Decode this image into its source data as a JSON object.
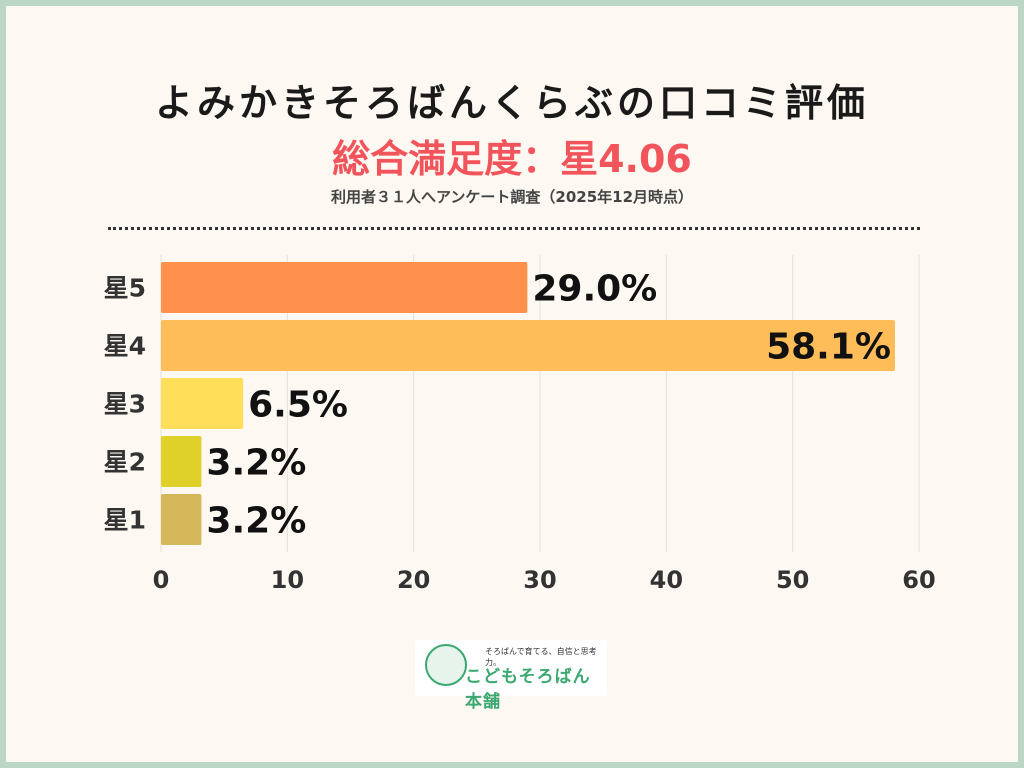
{
  "header": {
    "title": "よみかきそろばんくらぶの口コミ評価",
    "overall": "総合満足度：星4.06",
    "note": "利用者３１人へアンケート調査（2025年12月時点）"
  },
  "chart_data": {
    "type": "bar",
    "orientation": "horizontal",
    "categories": [
      "星5",
      "星4",
      "星3",
      "星2",
      "星1"
    ],
    "values": [
      29.0,
      58.1,
      6.5,
      3.2,
      3.2
    ],
    "data_labels": [
      "29.0%",
      "58.1%",
      "6.5%",
      "3.2%",
      "3.2%"
    ],
    "colors": [
      "#ff914d",
      "#ffbd59",
      "#ffde59",
      "#e0d12a",
      "#d4b85a"
    ],
    "xlim": [
      0,
      60
    ],
    "xticks": [
      "0",
      "10",
      "20",
      "30",
      "40",
      "50",
      "60"
    ],
    "grid": true,
    "xlabel": "",
    "ylabel": ""
  },
  "logo": {
    "tagline": "そろばんで育てる、自信と思考力。",
    "name": "こどもそろばん本舗"
  },
  "colors": {
    "background": "#fdf8f1",
    "border": "#bcd6c6",
    "accent": "#f2545b"
  }
}
